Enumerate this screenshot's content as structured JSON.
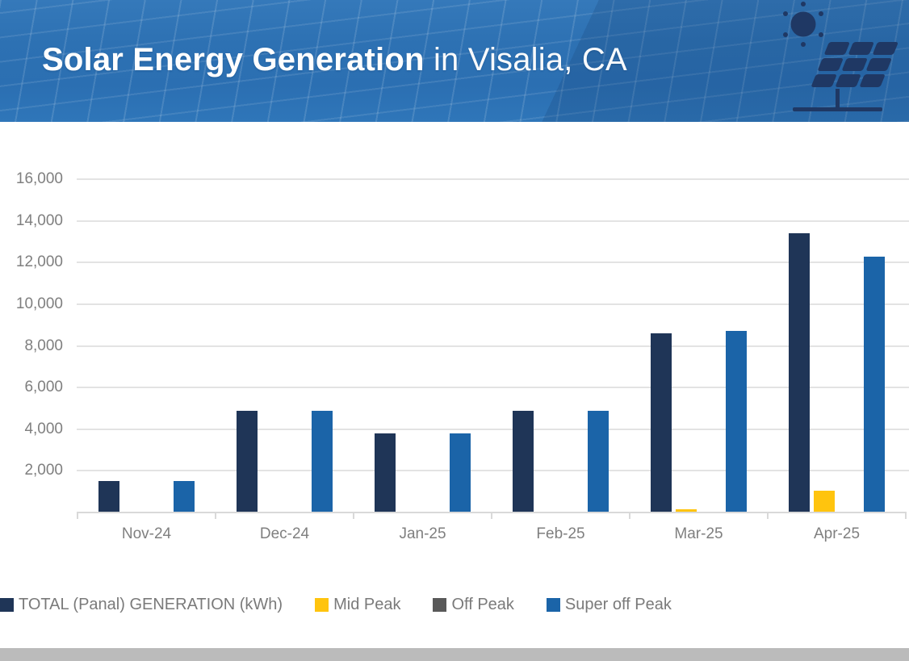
{
  "header": {
    "title_bold": "Solar Energy Generation",
    "title_regular": " in Visalia, CA",
    "icon_name": "solar-panel-with-sun-icon",
    "colors": {
      "banner_blue": "#2D71B3",
      "icon_navy": "#1F3864",
      "title_text": "#FFFFFF"
    }
  },
  "chart_data": {
    "type": "bar",
    "title": "",
    "xlabel": "",
    "ylabel": "",
    "categories": [
      "Nov-24",
      "Dec-24",
      "Jan-25",
      "Feb-25",
      "Mar-25",
      "Apr-25"
    ],
    "series": [
      {
        "name": "TOTAL (Panal) GENERATION (kWh)",
        "color": "#1F3557",
        "values": [
          1500,
          4900,
          3800,
          4900,
          8600,
          13400
        ]
      },
      {
        "name": "Mid Peak",
        "color": "#FFC40E",
        "values": [
          0,
          0,
          0,
          0,
          150,
          1050
        ]
      },
      {
        "name": "Off Peak",
        "color": "#595959",
        "values": [
          0,
          0,
          0,
          0,
          0,
          0
        ]
      },
      {
        "name": "Super off Peak",
        "color": "#1B64A8",
        "values": [
          1500,
          4900,
          3800,
          4900,
          8700,
          12300
        ]
      }
    ],
    "ylim": [
      0,
      16000
    ],
    "y_ticks": [
      2000,
      4000,
      6000,
      8000,
      10000,
      12000,
      14000,
      16000
    ],
    "y_tick_labels": [
      "2,000",
      "4,000",
      "6,000",
      "8,000",
      "10,000",
      "12,000",
      "14,000",
      "16,000"
    ],
    "grid": "horizontal",
    "legend_position": "bottom",
    "axis_text_color": "#7F7F7F",
    "gridline_color": "#E3E3E3"
  }
}
